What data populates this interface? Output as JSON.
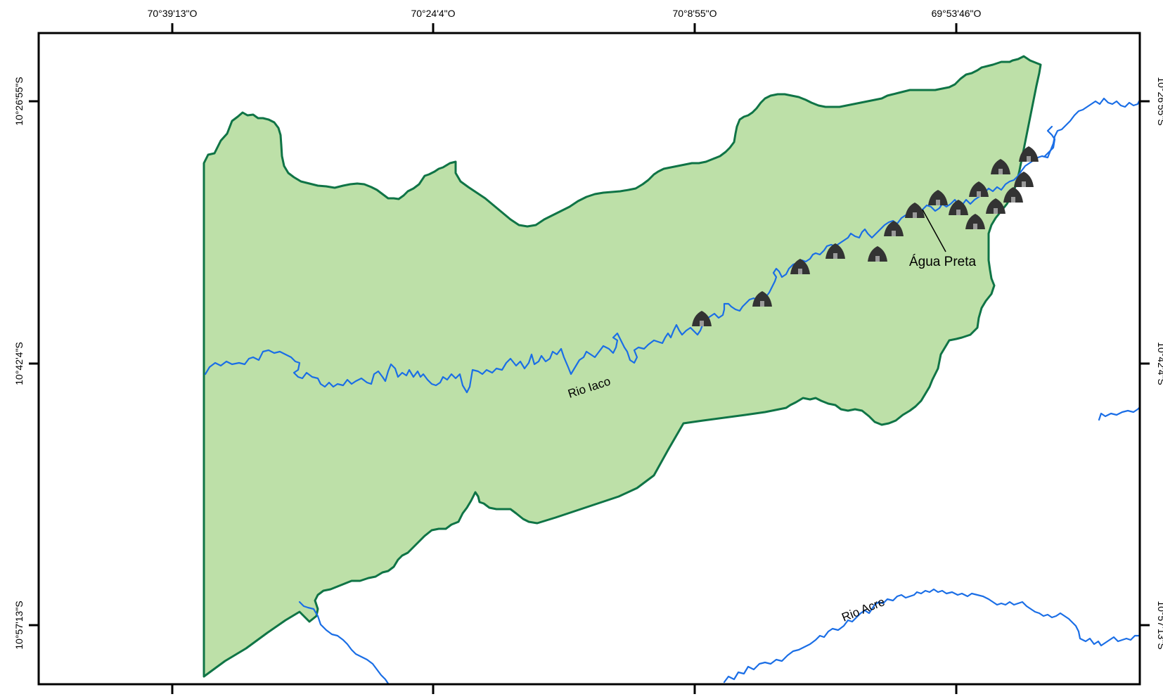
{
  "map": {
    "longitude_labels": [
      "70°39'13\"O",
      "70°24'4\"O",
      "70°8'55\"O",
      "69°53'46\"O"
    ],
    "latitude_labels": [
      "10°26'55\"S",
      "10°42'4\"S",
      "10°57'13\"S"
    ],
    "rivers": {
      "iaco_label": "Rio Iaco",
      "acre_label": "Rio Acre"
    },
    "village_label": "Água Preta",
    "colors": {
      "territory_fill": "#bde0a8",
      "territory_border": "#0f7446",
      "river": "#1a6ee6",
      "frame": "#000000",
      "village_icon": "#333333"
    },
    "village_icon": "hut-icon"
  }
}
